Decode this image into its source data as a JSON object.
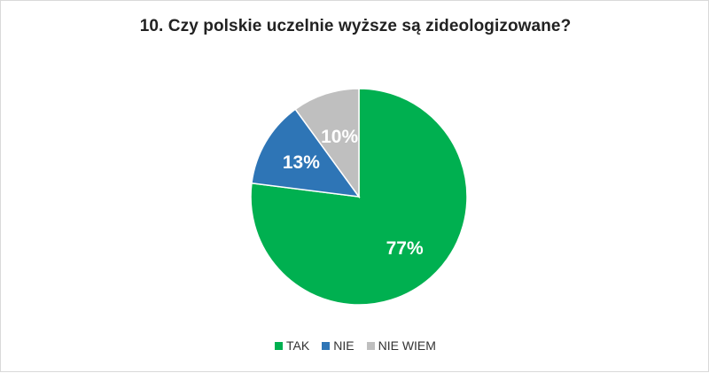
{
  "chart_data": {
    "type": "pie",
    "title": "10. Czy polskie uczelnie wyższe są zideologizowane?",
    "categories": [
      "TAK",
      "NIE",
      "NIE WIEM"
    ],
    "values": [
      77,
      13,
      10
    ],
    "data_labels": [
      "77%",
      "13%",
      "10%"
    ],
    "colors": [
      "#00B050",
      "#2E75B6",
      "#BFBFBF"
    ],
    "unit": "%",
    "legend_position": "bottom",
    "start_angle": "top",
    "direction": "clockwise"
  }
}
